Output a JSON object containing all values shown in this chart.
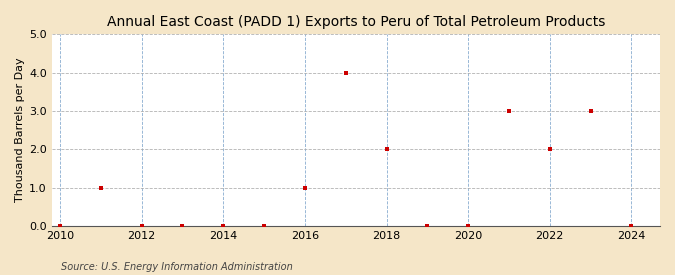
{
  "title": "Annual East Coast (PADD 1) Exports to Peru of Total Petroleum Products",
  "ylabel": "Thousand Barrels per Day",
  "source": "Source: U.S. Energy Information Administration",
  "x_values": [
    2010,
    2011,
    2012,
    2013,
    2014,
    2015,
    2016,
    2017,
    2018,
    2019,
    2020,
    2021,
    2022,
    2023,
    2024
  ],
  "y_values": [
    0.0,
    1.0,
    0.0,
    0.0,
    0.0,
    0.0,
    1.0,
    4.0,
    2.0,
    0.0,
    0.0,
    3.0,
    2.0,
    3.0,
    0.0
  ],
  "xlim": [
    2009.8,
    2024.7
  ],
  "ylim": [
    0.0,
    5.0
  ],
  "yticks": [
    0.0,
    1.0,
    2.0,
    3.0,
    4.0,
    5.0
  ],
  "xticks": [
    2010,
    2012,
    2014,
    2016,
    2018,
    2020,
    2022,
    2024
  ],
  "marker_color": "#cc0000",
  "marker": "s",
  "marker_size": 3,
  "fig_bg_color": "#f5e6c8",
  "plot_bg_color": "#ffffff",
  "h_grid_color": "#aaaaaa",
  "v_grid_color": "#5588bb",
  "title_fontsize": 10,
  "label_fontsize": 8,
  "tick_fontsize": 8,
  "source_fontsize": 7
}
